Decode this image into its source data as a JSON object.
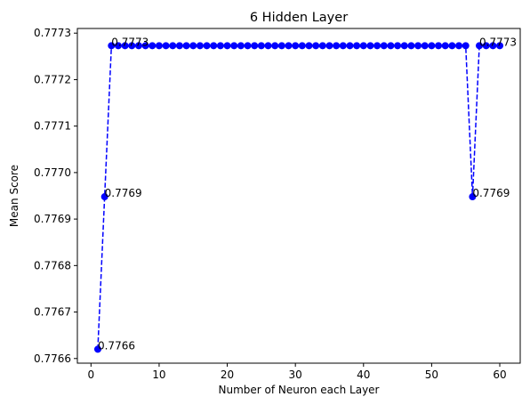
{
  "chart_data": {
    "type": "line",
    "title": "6 Hidden Layer",
    "xlabel": "Number of Neuron each Layer",
    "ylabel": "Mean Score",
    "xlim": [
      -2,
      63
    ],
    "ylim": [
      0.77659,
      0.77731
    ],
    "xticks": [
      0,
      10,
      20,
      30,
      40,
      50,
      60
    ],
    "yticks": [
      0.7766,
      0.7767,
      0.7768,
      0.7769,
      0.777,
      0.7771,
      0.7772,
      0.7773
    ],
    "ytick_labels": [
      "0.7766",
      "0.7767",
      "0.7768",
      "0.7769",
      "0.7770",
      "0.7771",
      "0.7772",
      "0.7773"
    ],
    "grid": false,
    "series": [
      {
        "color": "#0000ff",
        "line_style": "dashed",
        "marker": "circle",
        "x": [
          1,
          2,
          3,
          4,
          5,
          6,
          7,
          8,
          9,
          10,
          11,
          12,
          13,
          14,
          15,
          16,
          17,
          18,
          19,
          20,
          21,
          22,
          23,
          24,
          25,
          26,
          27,
          28,
          29,
          30,
          31,
          32,
          33,
          34,
          35,
          36,
          37,
          38,
          39,
          40,
          41,
          42,
          43,
          44,
          45,
          46,
          47,
          48,
          49,
          50,
          51,
          52,
          53,
          54,
          55,
          56,
          57,
          58,
          59,
          60
        ],
        "values": [
          0.77662,
          0.776948,
          0.777273,
          0.777273,
          0.777273,
          0.777273,
          0.777273,
          0.777273,
          0.777273,
          0.777273,
          0.777273,
          0.777273,
          0.777273,
          0.777273,
          0.777273,
          0.777273,
          0.777273,
          0.777273,
          0.777273,
          0.777273,
          0.777273,
          0.777273,
          0.777273,
          0.777273,
          0.777273,
          0.777273,
          0.777273,
          0.777273,
          0.777273,
          0.777273,
          0.777273,
          0.777273,
          0.777273,
          0.777273,
          0.777273,
          0.777273,
          0.777273,
          0.777273,
          0.777273,
          0.777273,
          0.777273,
          0.777273,
          0.777273,
          0.777273,
          0.777273,
          0.777273,
          0.777273,
          0.777273,
          0.777273,
          0.777273,
          0.777273,
          0.777273,
          0.777273,
          0.777273,
          0.777273,
          0.776948,
          0.777273,
          0.777273,
          0.777273,
          0.777273
        ]
      }
    ],
    "annotations": [
      {
        "x": 1,
        "y": 0.77662,
        "text": "0.7766"
      },
      {
        "x": 2,
        "y": 0.776948,
        "text": "0.7769"
      },
      {
        "x": 3,
        "y": 0.777273,
        "text": "0.7773"
      },
      {
        "x": 56,
        "y": 0.776948,
        "text": "0.7769"
      },
      {
        "x": 57,
        "y": 0.777273,
        "text": "0.7773"
      }
    ]
  }
}
